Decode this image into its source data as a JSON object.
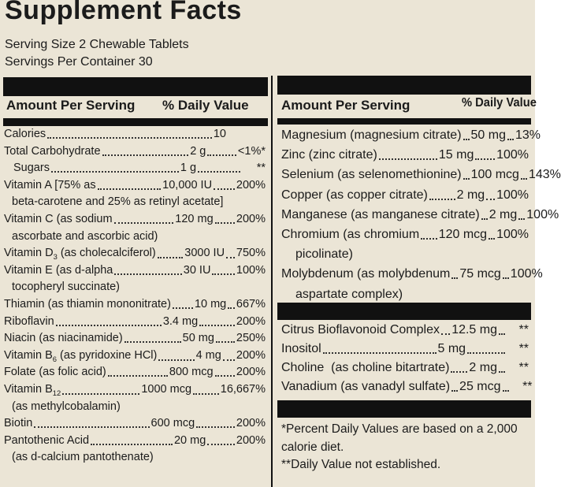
{
  "title": "Supplement Facts",
  "serving_size": "Serving Size 2 Chewable Tablets",
  "servings_per_container": "Servings Per Container 30",
  "left": {
    "header": {
      "amount": "Amount Per Serving",
      "dv": "% Daily Value"
    },
    "rows": [
      {
        "name": "Calories",
        "amount": "10"
      },
      {
        "name": "Total Carbohydrate",
        "amount": "2 g",
        "dv": "<1%*"
      },
      {
        "name": "Sugars",
        "amount": "1 g",
        "dv": "**"
      },
      {
        "name": "Vitamin A [75% as",
        "amount": "10,000 IU",
        "dv": "200%",
        "cont": "beta-carotene and 25% as retinyl acetate]"
      },
      {
        "name": "Vitamin C (as sodium",
        "amount": "120 mg",
        "dv": "200%",
        "cont": "ascorbate and ascorbic acid)"
      },
      {
        "name": "Vitamin D",
        "sub": "3",
        "name_rest": " (as cholecalciferol)",
        "amount": "3000 IU",
        "dv": "750%"
      },
      {
        "name": "Vitamin E (as d-alpha",
        "amount": "30 IU",
        "dv": "100%",
        "cont": "tocopheryl succinate)"
      },
      {
        "name": "Thiamin (as thiamin mononitrate)",
        "amount": "10 mg",
        "dv": "667%"
      },
      {
        "name": "Riboflavin",
        "amount": "3.4 mg",
        "dv": "200%"
      },
      {
        "name": "Niacin (as niacinamide)",
        "amount": "50 mg",
        "dv": "250%"
      },
      {
        "name": "Vitamin B",
        "sub": "6",
        "name_rest": " (as pyridoxine HCl)",
        "amount": "4 mg",
        "dv": "200%"
      },
      {
        "name": "Folate (as folic acid)",
        "amount": "800 mcg",
        "dv": "200%"
      },
      {
        "name": "Vitamin B",
        "sub": "12",
        "amount": "1000 mcg",
        "dv": "16,667%",
        "cont": "(as methylcobalamin)"
      },
      {
        "name": "Biotin",
        "amount": "600 mcg",
        "dv": "200%"
      },
      {
        "name": "Pantothenic Acid",
        "amount": "20 mg",
        "dv": "200%",
        "cont": "(as d-calcium pantothenate)"
      }
    ]
  },
  "right": {
    "header": {
      "amount": "Amount Per Serving",
      "dv": "% Daily Value"
    },
    "rows": [
      {
        "name": "Magnesium (magnesium citrate)",
        "amount": "50 mg",
        "dv": "13%"
      },
      {
        "name": "Zinc (zinc citrate)",
        "amount": "15 mg",
        "dv": "100%"
      },
      {
        "name": "Selenium (as selenomethionine)",
        "amount": "100 mcg",
        "dv": "143%"
      },
      {
        "name": "Copper (as copper citrate)",
        "amount": "2 mg",
        "dv": "100%"
      },
      {
        "name": "Manganese (as manganese citrate)",
        "amount": "2 mg",
        "dv": "100%"
      },
      {
        "name": "Chromium (as chromium",
        "amount": "120 mcg",
        "dv": "100%",
        "cont": "picolinate)"
      },
      {
        "name": "Molybdenum (as molybdenum",
        "amount": "75 mcg",
        "dv": "100%",
        "cont": "aspartate complex)"
      }
    ],
    "other_rows": [
      {
        "name": "Citrus Bioflavonoid Complex",
        "amount": "12.5 mg",
        "dv": "**"
      },
      {
        "name": "Inositol",
        "amount": "5 mg",
        "dv": "**"
      },
      {
        "name": "Choline  (as choline bitartrate)",
        "amount": "2 mg",
        "dv": "**"
      },
      {
        "name": "Vanadium (as vanadyl sulfate)",
        "amount": "25 mcg",
        "dv": "**"
      }
    ]
  },
  "footnotes": [
    "*Percent Daily Values are based on a 2,000",
    "calorie diet.",
    "**Daily Value not established."
  ]
}
